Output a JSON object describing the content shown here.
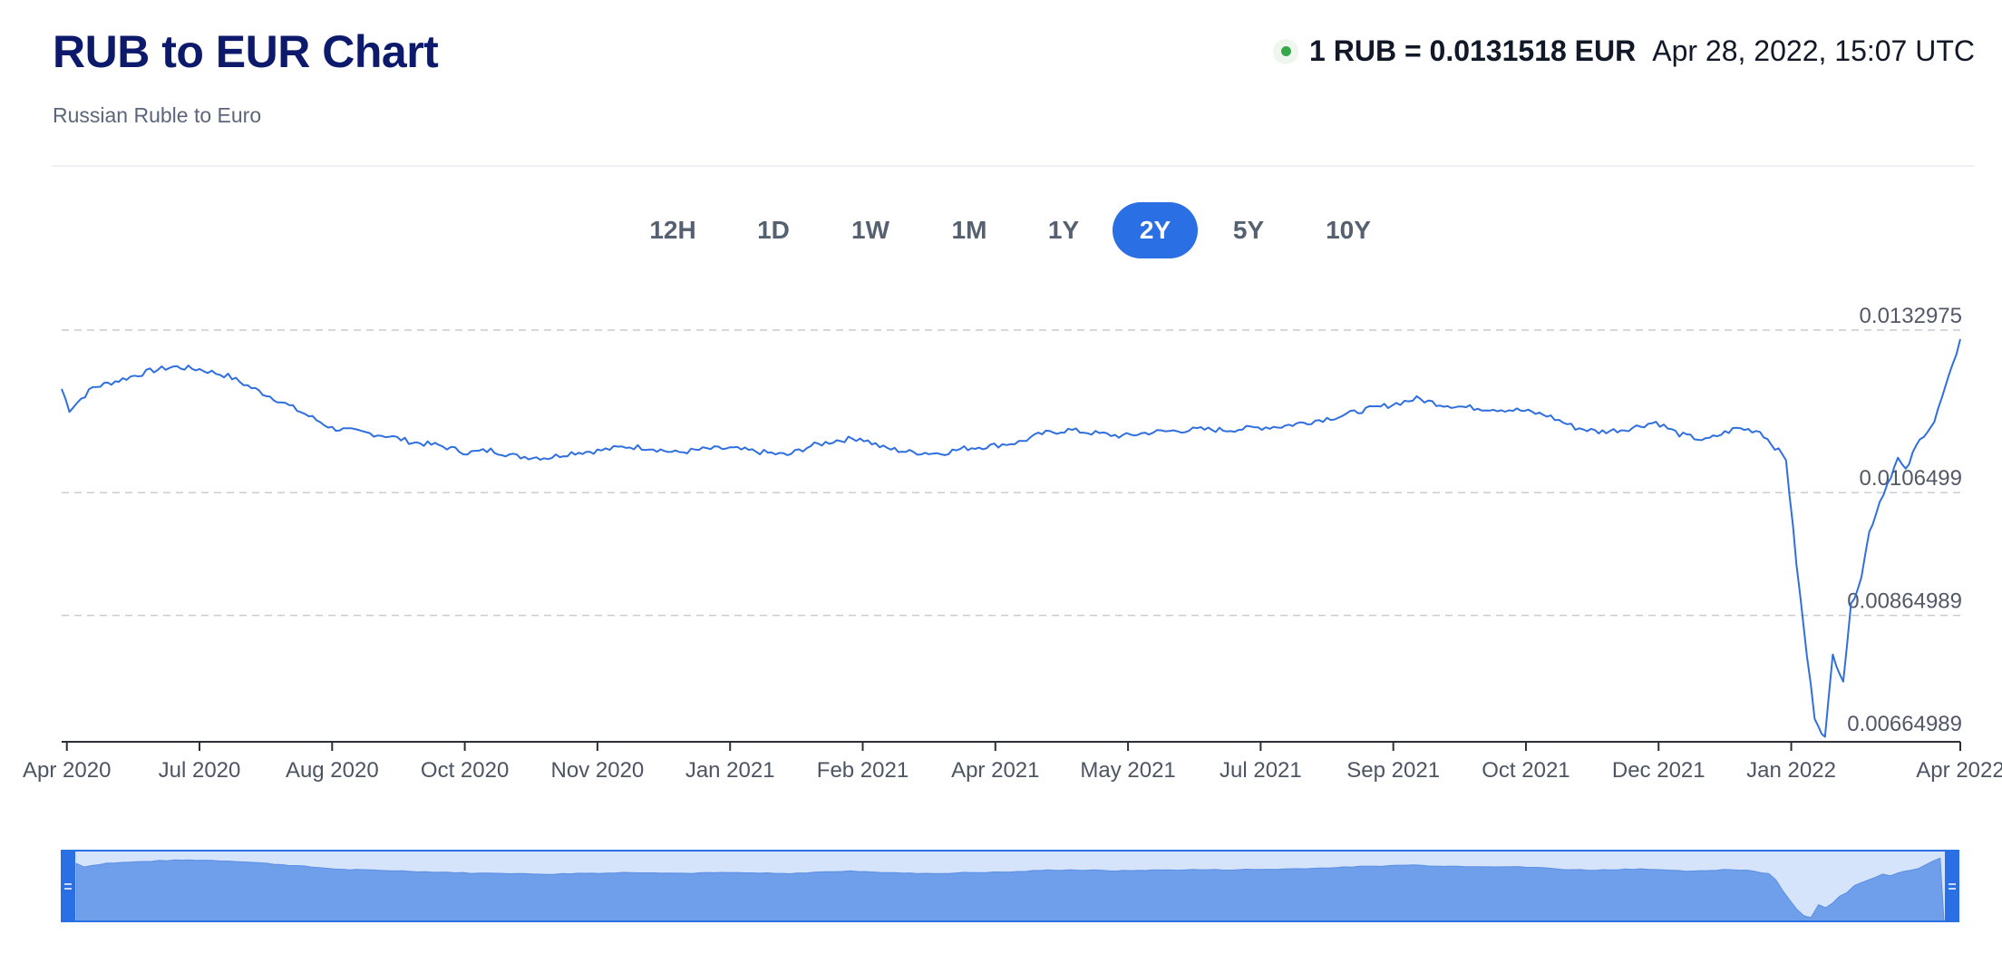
{
  "header": {
    "title": "RUB to EUR Chart",
    "subtitle": "Russian Ruble to Euro",
    "rate": "1 RUB = 0.0131518 EUR",
    "timestamp": "Apr 28, 2022, 15:07 UTC",
    "status_color": "#35a84a"
  },
  "tabs": [
    {
      "label": "12H",
      "active": false
    },
    {
      "label": "1D",
      "active": false
    },
    {
      "label": "1W",
      "active": false
    },
    {
      "label": "1M",
      "active": false
    },
    {
      "label": "1Y",
      "active": false
    },
    {
      "label": "2Y",
      "active": true
    },
    {
      "label": "5Y",
      "active": false
    },
    {
      "label": "10Y",
      "active": false
    }
  ],
  "colors": {
    "accent": "#2a6fe4",
    "line": "#2f6fde",
    "navigator_fill": "#6f9eea",
    "navigator_bg": "#d6e4fb",
    "title": "#0d1a6b"
  },
  "chart_data": {
    "type": "line",
    "title": "RUB to EUR Chart",
    "xlabel": "",
    "ylabel": "",
    "ylim": [
      0.00664989,
      0.0132975
    ],
    "y_ticks": [
      "0.0132975",
      "0.0106499",
      "0.00864989",
      "0.00664989"
    ],
    "y_tick_values": [
      0.0132975,
      0.0106499,
      0.00864989,
      0.00664989
    ],
    "x_tick_labels": [
      "Apr 2020",
      "Jul 2020",
      "Aug 2020",
      "Oct 2020",
      "Nov 2020",
      "Jan 2021",
      "Feb 2021",
      "Apr 2021",
      "May 2021",
      "Jul 2021",
      "Sep 2021",
      "Oct 2021",
      "Dec 2021",
      "Jan 2022",
      "Apr 2022"
    ],
    "x_tick_dates": [
      "2020-04-30",
      "2020-06-20",
      "2020-08-10",
      "2020-09-30",
      "2020-11-20",
      "2021-01-10",
      "2021-03-02",
      "2021-04-22",
      "2021-06-12",
      "2021-08-02",
      "2021-09-22",
      "2021-11-12",
      "2022-01-02",
      "2022-02-22",
      "2022-04-28"
    ],
    "grid": true,
    "legend": "none",
    "series": [
      {
        "x": [
          "2020-04-28",
          "2020-05-01",
          "2020-05-10",
          "2020-05-20",
          "2020-06-01",
          "2020-06-10",
          "2020-06-20",
          "2020-07-01",
          "2020-07-10",
          "2020-07-20",
          "2020-08-01",
          "2020-08-10",
          "2020-08-20",
          "2020-09-01",
          "2020-09-10",
          "2020-09-20",
          "2020-10-01",
          "2020-10-10",
          "2020-10-20",
          "2020-11-01",
          "2020-11-10",
          "2020-11-20",
          "2020-12-01",
          "2020-12-10",
          "2020-12-20",
          "2021-01-01",
          "2021-01-10",
          "2021-01-20",
          "2021-02-01",
          "2021-02-10",
          "2021-02-20",
          "2021-03-01",
          "2021-03-10",
          "2021-03-20",
          "2021-04-01",
          "2021-04-10",
          "2021-04-20",
          "2021-05-01",
          "2021-05-10",
          "2021-05-20",
          "2021-06-01",
          "2021-06-10",
          "2021-06-20",
          "2021-07-01",
          "2021-07-10",
          "2021-07-20",
          "2021-08-01",
          "2021-08-10",
          "2021-08-20",
          "2021-09-01",
          "2021-09-10",
          "2021-09-20",
          "2021-10-01",
          "2021-10-10",
          "2021-10-20",
          "2021-11-01",
          "2021-11-10",
          "2021-11-20",
          "2021-12-01",
          "2021-12-10",
          "2021-12-20",
          "2022-01-01",
          "2022-01-10",
          "2022-01-20",
          "2022-02-01",
          "2022-02-10",
          "2022-02-20",
          "2022-02-24",
          "2022-02-28",
          "2022-03-03",
          "2022-03-07",
          "2022-03-10",
          "2022-03-14",
          "2022-03-17",
          "2022-03-21",
          "2022-03-24",
          "2022-03-28",
          "2022-03-31",
          "2022-04-04",
          "2022-04-07",
          "2022-04-11",
          "2022-04-14",
          "2022-04-18",
          "2022-04-21",
          "2022-04-25",
          "2022-04-28"
        ],
        "y": [
          0.01234,
          0.012,
          0.01236,
          0.01248,
          0.01263,
          0.0127,
          0.01266,
          0.01255,
          0.01236,
          0.01216,
          0.0119,
          0.0117,
          0.01164,
          0.01157,
          0.01147,
          0.01142,
          0.0113,
          0.01134,
          0.01124,
          0.01122,
          0.0113,
          0.01133,
          0.0114,
          0.01138,
          0.0113,
          0.01136,
          0.01137,
          0.01132,
          0.01126,
          0.01141,
          0.0115,
          0.01154,
          0.01138,
          0.01131,
          0.01129,
          0.01137,
          0.01141,
          0.01147,
          0.01161,
          0.01167,
          0.01161,
          0.01157,
          0.01163,
          0.01166,
          0.01168,
          0.01167,
          0.01171,
          0.01173,
          0.0118,
          0.01189,
          0.01199,
          0.01207,
          0.01218,
          0.01209,
          0.01204,
          0.01201,
          0.01199,
          0.01191,
          0.01171,
          0.01164,
          0.01168,
          0.0118,
          0.0116,
          0.0115,
          0.0117,
          0.01165,
          0.0112,
          0.0095,
          0.008,
          0.007,
          0.00665,
          0.008,
          0.0076,
          0.0088,
          0.0093,
          0.01,
          0.0105,
          0.0108,
          0.0112,
          0.011,
          0.0114,
          0.0116,
          0.0118,
          0.0122,
          0.0127,
          0.01315
        ]
      }
    ]
  }
}
